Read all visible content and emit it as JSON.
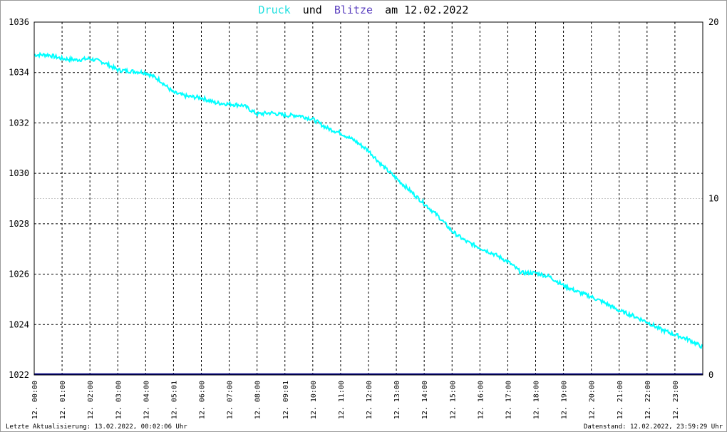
{
  "title": {
    "word1": "Druck",
    "word2": "und",
    "word3": "Blitze",
    "word4": "am 12.02.2022"
  },
  "colors": {
    "pressure": "#00ffff",
    "lightning": "#5a3fbf",
    "baseline": "#000080",
    "grid": "#000000",
    "text": "#000000"
  },
  "footer": {
    "left": "Letzte Aktualisierung: 13.02.2022, 00:02:06 Uhr",
    "right": "Datenstand: 12.02.2022, 23:59:29 Uhr"
  },
  "chart_data": {
    "type": "line",
    "title": "Druck und Blitze am 12.02.2022",
    "ylim": [
      1022,
      1036
    ],
    "y_ticks": [
      "1022",
      "1024",
      "1026",
      "1028",
      "1030",
      "1032",
      "1034",
      "1036"
    ],
    "y2lim": [
      0,
      20
    ],
    "y2_ticks": [
      "0",
      "10",
      "20"
    ],
    "x_ticks": [
      "12. 00:00",
      "12. 01:00",
      "12. 02:00",
      "12. 03:00",
      "12. 04:00",
      "12. 05:01",
      "12. 06:00",
      "12. 07:00",
      "12. 08:00",
      "12. 09:01",
      "12. 10:00",
      "12. 11:00",
      "12. 12:00",
      "12. 13:00",
      "12. 14:00",
      "12. 15:00",
      "12. 16:00",
      "12. 17:00",
      "12. 18:00",
      "12. 19:00",
      "12. 20:00",
      "12. 21:00",
      "12. 22:00",
      "12. 23:00"
    ],
    "xlim_hours": [
      0,
      24
    ],
    "grid": true,
    "series": [
      {
        "name": "Druck",
        "axis": "left",
        "x_hours": [
          0,
          0.5,
          1,
          1.5,
          2,
          2.5,
          3,
          3.5,
          4,
          4.5,
          5,
          5.5,
          6,
          6.5,
          7,
          7.5,
          8,
          8.5,
          9,
          9.5,
          10,
          10.5,
          11,
          11.5,
          12,
          12.5,
          13,
          13.5,
          14,
          14.5,
          15,
          15.5,
          16,
          16.5,
          17,
          17.5,
          18,
          18.5,
          19,
          19.5,
          20,
          20.5,
          21,
          21.5,
          22,
          22.5,
          23,
          23.5,
          24
        ],
        "values": [
          1034.7,
          1034.7,
          1034.55,
          1034.5,
          1034.55,
          1034.4,
          1034.1,
          1034.05,
          1034.0,
          1033.7,
          1033.2,
          1033.05,
          1033.0,
          1032.8,
          1032.75,
          1032.7,
          1032.35,
          1032.4,
          1032.3,
          1032.3,
          1032.15,
          1031.8,
          1031.6,
          1031.3,
          1030.9,
          1030.3,
          1029.8,
          1029.3,
          1028.8,
          1028.3,
          1027.7,
          1027.3,
          1027.05,
          1026.8,
          1026.5,
          1026.05,
          1026.05,
          1025.9,
          1025.55,
          1025.3,
          1025.1,
          1024.85,
          1024.55,
          1024.35,
          1024.1,
          1023.8,
          1023.6,
          1023.4,
          1023.1
        ]
      },
      {
        "name": "Blitze",
        "axis": "right",
        "x_hours": [
          0,
          24
        ],
        "values": [
          0,
          0
        ]
      }
    ]
  }
}
